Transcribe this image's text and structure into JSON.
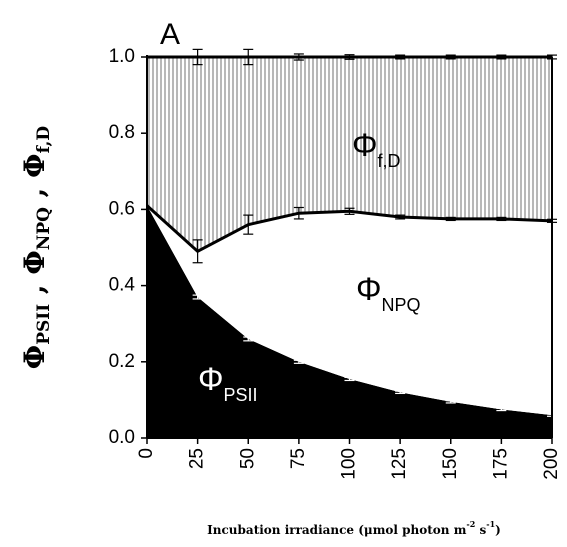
{
  "chart_data": {
    "type": "stacked-area",
    "panel_label": "A",
    "x": [
      0,
      25,
      50,
      75,
      100,
      125,
      150,
      175,
      200
    ],
    "series": [
      {
        "name": [
          "Φ",
          "PSII"
        ],
        "color": "#000000",
        "values": [
          0.61,
          0.37,
          0.26,
          0.2,
          0.155,
          0.12,
          0.095,
          0.075,
          0.06
        ],
        "errors": [
          0,
          0.005,
          0.005,
          0.004,
          0.004,
          0.003,
          0.003,
          0.003,
          0.003
        ]
      },
      {
        "name": [
          "Φ",
          "NPQ"
        ],
        "color": "#ffffff",
        "values": [
          0.0,
          0.12,
          0.3,
          0.39,
          0.44,
          0.46,
          0.48,
          0.5,
          0.51
        ],
        "errors": [
          0.005,
          0.03,
          0.025,
          0.015,
          0.008,
          0.005,
          0.004,
          0.004,
          0.004
        ],
        "line": true
      },
      {
        "name": [
          "Φ",
          "f,D"
        ],
        "color": "#8a8a8a",
        "hatch": true,
        "values": [
          0.39,
          0.51,
          0.44,
          0.41,
          0.405,
          0.42,
          0.425,
          0.425,
          0.43
        ],
        "errors": [
          0.005,
          0.02,
          0.02,
          0.008,
          0.006,
          0.005,
          0.005,
          0.005,
          0.005
        ],
        "line": true
      }
    ],
    "xlim": [
      0,
      200
    ],
    "ylim": [
      0,
      1
    ],
    "xticks": [
      0,
      25,
      50,
      75,
      100,
      125,
      150,
      175,
      200
    ],
    "yticks": [
      {
        "value": 0,
        "label": "0.0"
      },
      {
        "value": 0.2,
        "label": "0.2"
      },
      {
        "value": 0.4,
        "label": "0.4"
      },
      {
        "value": 0.6,
        "label": "0.6"
      },
      {
        "value": 0.8,
        "label": "0.8"
      },
      {
        "value": 1,
        "label": "1.0"
      }
    ],
    "ylabel": [
      {
        "text": "Φ"
      },
      {
        "text": "PSII",
        "sub": true
      },
      {
        "text": " , "
      },
      {
        "text": "Φ"
      },
      {
        "text": "NPQ",
        "sub": true
      },
      {
        "text": " , "
      },
      {
        "text": "Φ"
      },
      {
        "text": "f,D",
        "sub": true
      }
    ],
    "xlabel": [
      {
        "text": "Incubation irradiance (μmol photon m"
      },
      {
        "text": "-2",
        "sup": true
      },
      {
        "text": " s"
      },
      {
        "text": "-1",
        "sup": true
      },
      {
        "text": ")"
      }
    ]
  }
}
